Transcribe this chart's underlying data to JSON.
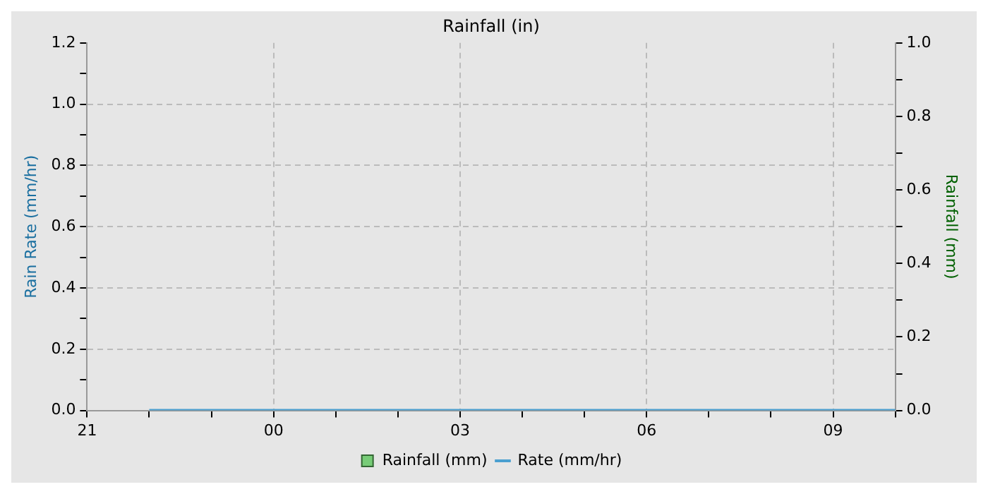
{
  "chart_data": {
    "type": "line",
    "title": "Rainfall (in)",
    "ylabel": "Rain Rate (mm/hr)",
    "y2label": "Rainfall (mm)",
    "categories": [
      "21",
      null,
      null,
      "00",
      null,
      null,
      "03",
      null,
      null,
      "06",
      null,
      null,
      "09",
      null
    ],
    "series": [
      {
        "name": "Rainfall (mm)",
        "type": "bar",
        "axis": "y2",
        "color": "#77cc77",
        "values": [
          null,
          0,
          0,
          0,
          0,
          0,
          0,
          0,
          0,
          0,
          0,
          0,
          0,
          0
        ]
      },
      {
        "name": "Rate (mm/hr)",
        "color": "#4a9fd0",
        "values": [
          null,
          0,
          0,
          0,
          0,
          0,
          0,
          0,
          0,
          0,
          0,
          0,
          0,
          0
        ]
      }
    ],
    "ylim": [
      0,
      1.2
    ],
    "yticks": [
      {
        "value": 0,
        "label": "0.0"
      },
      {
        "value": 0.1,
        "label": null
      },
      {
        "value": 0.2,
        "label": "0.2"
      },
      {
        "value": 0.3,
        "label": null
      },
      {
        "value": 0.4,
        "label": "0.4"
      },
      {
        "value": 0.5,
        "label": null
      },
      {
        "value": 0.6,
        "label": "0.6"
      },
      {
        "value": 0.7,
        "label": null
      },
      {
        "value": 0.8,
        "label": "0.8"
      },
      {
        "value": 0.9,
        "label": null
      },
      {
        "value": 1.0,
        "label": "1.0"
      },
      {
        "value": 1.1,
        "label": null
      },
      {
        "value": 1.2,
        "label": "1.2"
      }
    ],
    "y2lim": [
      0,
      1.0
    ],
    "y2ticks": [
      {
        "value": 0,
        "label": "0.0"
      },
      {
        "value": 0.1,
        "label": null
      },
      {
        "value": 0.2,
        "label": "0.2"
      },
      {
        "value": 0.3,
        "label": null
      },
      {
        "value": 0.4,
        "label": "0.4"
      },
      {
        "value": 0.5,
        "label": null
      },
      {
        "value": 0.6,
        "label": "0.6"
      },
      {
        "value": 0.7,
        "label": null
      },
      {
        "value": 0.8,
        "label": "0.8"
      },
      {
        "value": 0.9,
        "label": null
      },
      {
        "value": 1.0,
        "label": "1.0"
      }
    ],
    "grid": true,
    "legend": "bottom",
    "marker": "none",
    "line_style": "solid"
  }
}
